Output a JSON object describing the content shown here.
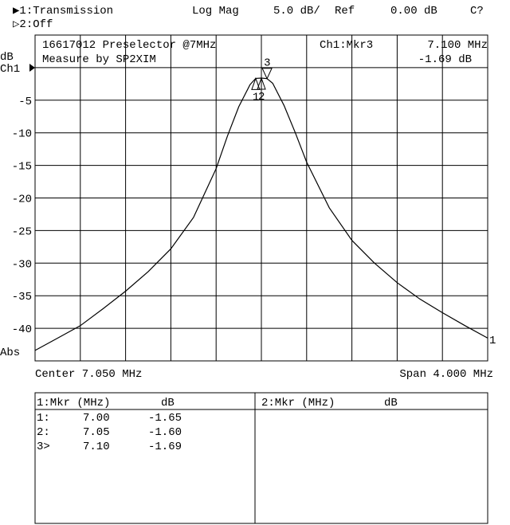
{
  "header": {
    "channel1": "▶1:Transmission",
    "format": "Log Mag",
    "scale": "5.0 dB/",
    "ref_label": "Ref",
    "ref_value": "0.00 dB",
    "cal_status": "C?",
    "channel2": "▷2:Off"
  },
  "annotation": {
    "title_line1": "16617012 Preselector @7MHz",
    "title_line2": "Measure by SP2XIM",
    "active_marker": "Ch1:Mkr3",
    "active_marker_freq": "7.100 MHz",
    "active_marker_value": "-1.69 dB",
    "ref_position_label": "Ch1",
    "trace_label": "1"
  },
  "footer": {
    "center": "Center 7.050 MHz",
    "span": "Span 4.000 MHz"
  },
  "marker_table": {
    "left_header": [
      "1:Mkr (MHz)",
      "dB"
    ],
    "right_header": [
      "2:Mkr (MHz)",
      "dB"
    ],
    "rows": [
      {
        "id": "1:",
        "freq": "7.00",
        "value": "-1.65"
      },
      {
        "id": "2:",
        "freq": "7.05",
        "value": "-1.60"
      },
      {
        "id": "3>",
        "freq": "7.10",
        "value": "-1.69"
      }
    ]
  },
  "chart_data": {
    "type": "line",
    "xlabel": "",
    "ylabel": "dB",
    "ylabel_bottom": "Abs",
    "xlim": [
      5.05,
      9.05
    ],
    "ylim": [
      -45,
      5
    ],
    "grid": true,
    "yticks": [
      {
        "value": -5,
        "label": "-5"
      },
      {
        "value": -10,
        "label": "-10"
      },
      {
        "value": -15,
        "label": "-15"
      },
      {
        "value": -20,
        "label": "-20"
      },
      {
        "value": -25,
        "label": "-25"
      },
      {
        "value": -30,
        "label": "-30"
      },
      {
        "value": -35,
        "label": "-35"
      },
      {
        "value": -40,
        "label": "-40"
      }
    ],
    "x_divisions": 10,
    "y_divisions": 10,
    "trace_color": "#000000",
    "series": [
      {
        "x": [
          5.05,
          5.25,
          5.45,
          5.65,
          5.85,
          6.05,
          6.25,
          6.45,
          6.65,
          6.75,
          6.85,
          6.95,
          7.0,
          7.05,
          7.1,
          7.15,
          7.25,
          7.35,
          7.45,
          7.65,
          7.85,
          8.05,
          8.25,
          8.45,
          8.65,
          8.85,
          9.05
        ],
        "y": [
          -43.4,
          -41.5,
          -39.6,
          -37.0,
          -34.3,
          -31.3,
          -27.8,
          -23.0,
          -15.5,
          -10.5,
          -6.0,
          -2.6,
          -1.65,
          -1.6,
          -1.69,
          -2.4,
          -5.8,
          -10.0,
          -14.5,
          -21.5,
          -26.5,
          -30.0,
          -33.0,
          -35.5,
          -37.6,
          -39.6,
          -41.5
        ]
      }
    ],
    "markers": [
      {
        "label": "1",
        "x": 7.0,
        "y": -1.65,
        "style": "up"
      },
      {
        "label": "2",
        "x": 7.05,
        "y": -1.6,
        "style": "up"
      },
      {
        "label": "3",
        "x": 7.1,
        "y": -1.69,
        "style": "down-active"
      }
    ]
  }
}
